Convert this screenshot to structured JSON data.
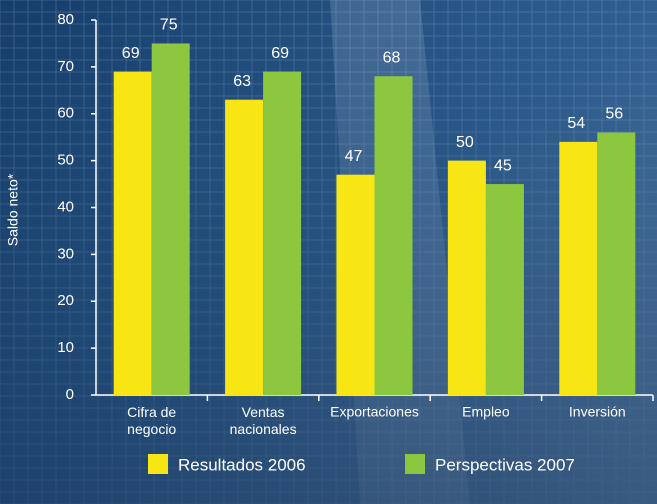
{
  "chart_data": {
    "type": "bar",
    "y_label": "Saldo neto*",
    "categories": [
      "Cifra de\nnegocio",
      "Ventas\nnacionales",
      "Exportaciones",
      "Empleo",
      "Inversión"
    ],
    "series": [
      {
        "name": "Resultados 2006",
        "color": "#f7e614",
        "values": [
          69,
          63,
          47,
          50,
          54
        ]
      },
      {
        "name": "Perspectivas 2007",
        "color": "#8dc63f",
        "values": [
          75,
          69,
          68,
          45,
          56
        ]
      }
    ],
    "ylim": [
      0,
      80
    ],
    "yticks": [
      0,
      10,
      20,
      30,
      40,
      50,
      60,
      70,
      80
    ],
    "grid": false
  }
}
